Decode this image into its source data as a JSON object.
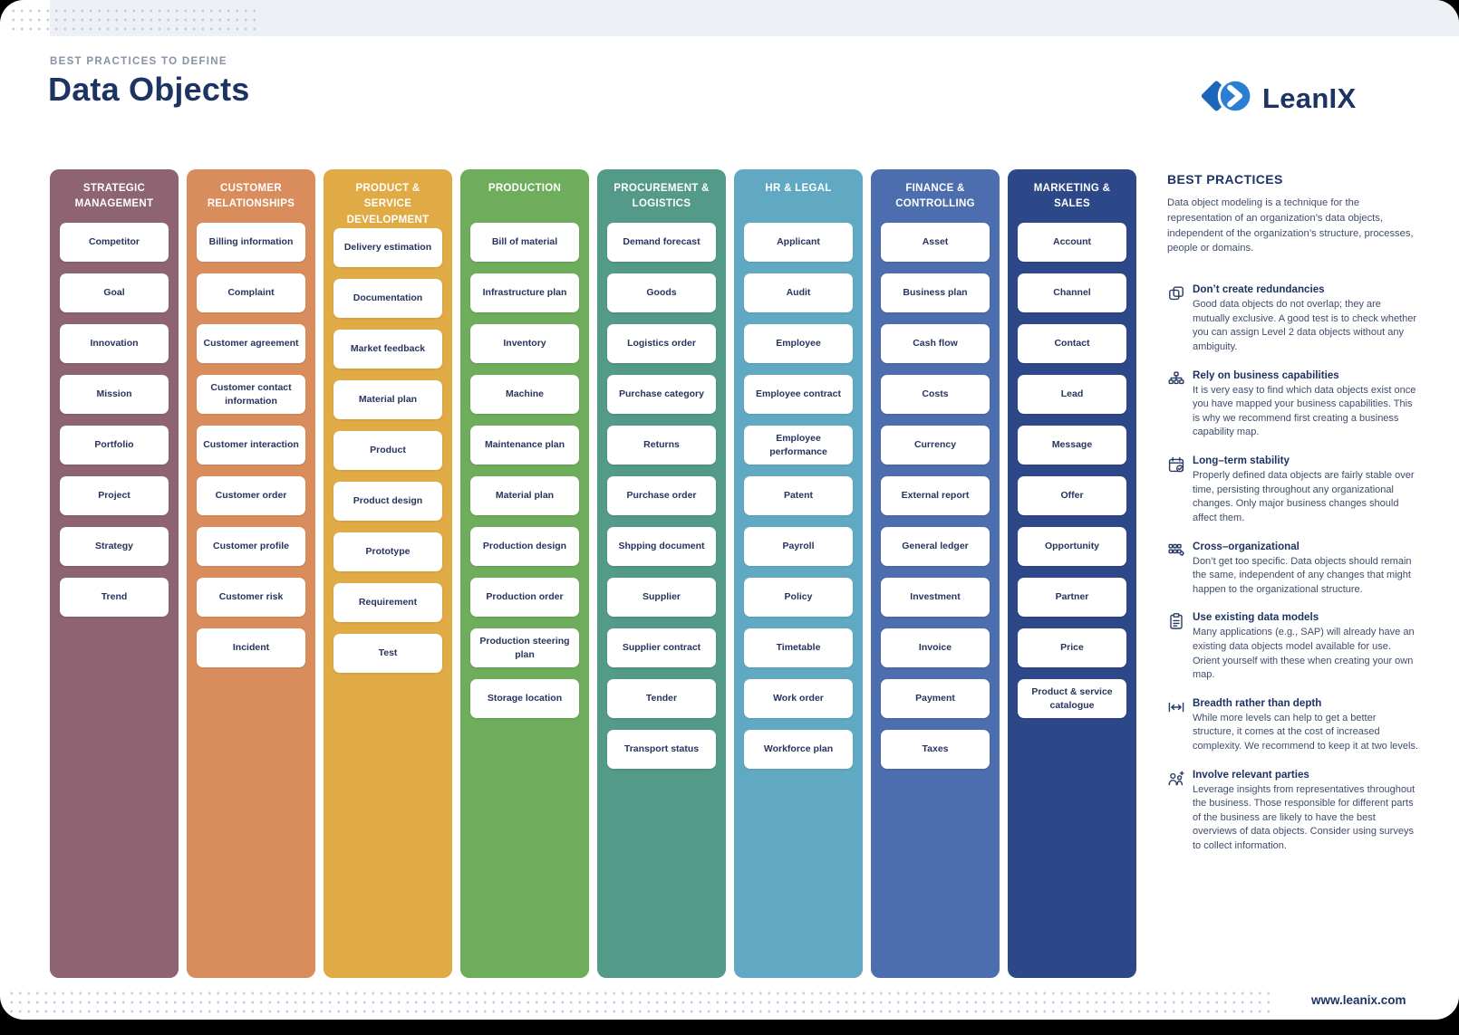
{
  "page": {
    "eyebrow": "BEST PRACTICES TO DEFINE",
    "title": "Data Objects",
    "brand": "LeanIX",
    "footer_url": "www.leanix.com"
  },
  "brand_colors": {
    "diamond": "#1a66b8",
    "circle": "#2b7fd2",
    "navy": "#1d3363"
  },
  "columns": [
    {
      "title": "STRATEGIC MANAGEMENT",
      "color": "#8e6372",
      "items": [
        "Competitor",
        "Goal",
        "Innovation",
        "Mission",
        "Portfolio",
        "Project",
        "Strategy",
        "Trend"
      ]
    },
    {
      "title": "CUSTOMER RELATIONSHIPS",
      "color": "#d98d5c",
      "items": [
        "Billing information",
        "Complaint",
        "Customer agreement",
        "Customer contact information",
        "Customer interaction",
        "Customer order",
        "Customer profile",
        "Customer risk",
        "Incident"
      ]
    },
    {
      "title": "PRODUCT & SERVICE DEVELOPMENT",
      "color": "#e0aa44",
      "items": [
        "Delivery estimation",
        "Documentation",
        "Market feedback",
        "Material plan",
        "Product",
        "Product design",
        "Prototype",
        "Requirement",
        "Test"
      ]
    },
    {
      "title": "PRODUCTION",
      "color": "#6ead5c",
      "items": [
        "Bill of material",
        "Infrastructure plan",
        "Inventory",
        "Machine",
        "Maintenance plan",
        "Material plan",
        "Production design",
        "Production order",
        "Production steering plan",
        "Storage location"
      ]
    },
    {
      "title": "PROCUREMENT & LOGISTICS",
      "color": "#549a88",
      "items": [
        "Demand forecast",
        "Goods",
        "Logistics order",
        "Purchase category",
        "Returns",
        "Purchase order",
        "Shpping document",
        "Supplier",
        "Supplier contract",
        "Tender",
        "Transport status"
      ]
    },
    {
      "title": "HR & LEGAL",
      "color": "#61a9c3",
      "items": [
        "Applicant",
        "Audit",
        "Employee",
        "Employee contract",
        "Employee performance",
        "Patent",
        "Payroll",
        "Policy",
        "Timetable",
        "Work order",
        "Workforce plan"
      ]
    },
    {
      "title": "FINANCE & CONTROLLING",
      "color": "#4c6dae",
      "items": [
        "Asset",
        "Business plan",
        "Cash flow",
        "Costs",
        "Currency",
        "External report",
        "General ledger",
        "Investment",
        "Invoice",
        "Payment",
        "Taxes"
      ]
    },
    {
      "title": "MARKETING & SALES",
      "color": "#2d4889",
      "items": [
        "Account",
        "Channel",
        "Contact",
        "Lead",
        "Message",
        "Offer",
        "Opportunity",
        "Partner",
        "Price",
        "Product & service catalogue"
      ]
    }
  ],
  "best_practices": {
    "heading": "BEST PRACTICES",
    "intro": "Data object modeling is a technique for the representation of an organization’s data objects, independent of the organization’s structure, processes, people or domains.",
    "items": [
      {
        "icon": "overlapping-squares-icon",
        "title": "Don’t create redundancies",
        "text": "Good data objects do not overlap; they are mutually exclusive. A good test is to check whether you can assign Level 2 data objects without any ambiguity."
      },
      {
        "icon": "hierarchy-icon",
        "title": "Rely on business capabilities",
        "text": "It is very easy to find which data objects exist once you have mapped your business capabilities. This is why we recommend first creating a business capability map."
      },
      {
        "icon": "calendar-check-icon",
        "title": "Long–term stability",
        "text": "Properly defined data objects are fairly stable over time, persisting throughout any organizational changes. Only major business changes should affect them."
      },
      {
        "icon": "cross-org-icon",
        "title": "Cross–organizational",
        "text": "Don’t get too specific. Data objects should remain the same, independent of any changes that might happen to the organizational structure."
      },
      {
        "icon": "clipboard-icon",
        "title": "Use existing data models",
        "text": "Many applications (e.g., SAP) will already have an existing data objects model available for use. Orient yourself with these when creating your own map."
      },
      {
        "icon": "breadth-icon",
        "title": "Breadth rather than depth",
        "text": "While more levels can help to get a better structure, it comes at the cost of increased complexity.  We recommend to keep it at two levels."
      },
      {
        "icon": "people-plus-icon",
        "title": "Involve relevant parties",
        "text": "Leverage insights from representatives throughout the business. Those responsible for different parts of the business are likely to have the best overviews of data objects. Consider using surveys to collect information."
      }
    ]
  }
}
